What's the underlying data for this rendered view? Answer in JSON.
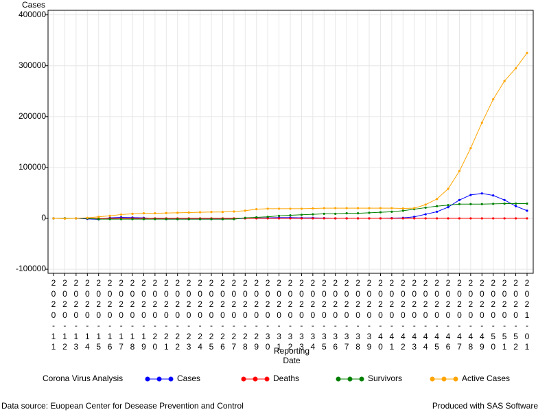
{
  "chart_data": {
    "type": "line",
    "y_label": "Cases",
    "x_label_lines": [
      "Reporting",
      "Date"
    ],
    "legend_title": "Corona Virus Analysis",
    "footnote_left": "Data source: Euopean Center for Desease Prevention and Control",
    "footnote_right": "Produced with SAS Software",
    "categories": [
      "2020-11",
      "2020-12",
      "2020-13",
      "2020-14",
      "2020-15",
      "2020-16",
      "2020-17",
      "2020-18",
      "2020-19",
      "2020-20",
      "2020-21",
      "2020-22",
      "2020-23",
      "2020-24",
      "2020-25",
      "2020-26",
      "2020-27",
      "2020-28",
      "2020-29",
      "2020-30",
      "2020-31",
      "2020-32",
      "2020-33",
      "2020-34",
      "2020-35",
      "2020-36",
      "2020-37",
      "2020-38",
      "2020-39",
      "2020-40",
      "2020-41",
      "2020-42",
      "2020-43",
      "2020-44",
      "2020-45",
      "2020-46",
      "2020-47",
      "2020-48",
      "2020-49",
      "2020-50",
      "2020-51",
      "2020-52",
      "2021-01"
    ],
    "series": [
      {
        "name": "Cases",
        "color": "#0000ff",
        "values": [
          0,
          0,
          0,
          -1000,
          -2000,
          1000,
          2000,
          1500,
          1000,
          -1000,
          -1500,
          -1500,
          -1500,
          -1500,
          -1500,
          -1500,
          -1000,
          0,
          500,
          1000,
          1500,
          1500,
          1000,
          1000,
          500,
          0,
          0,
          0,
          0,
          0,
          500,
          1000,
          3000,
          8000,
          13000,
          22000,
          36000,
          46000,
          49000,
          45000,
          36000,
          24000,
          15000
        ]
      },
      {
        "name": "Deaths",
        "color": "#ff0000",
        "values": [
          0,
          0,
          0,
          0,
          -500,
          0,
          0,
          0,
          0,
          0,
          0,
          0,
          0,
          0,
          0,
          0,
          0,
          0,
          0,
          0,
          0,
          0,
          0,
          0,
          0,
          0,
          0,
          0,
          0,
          0,
          0,
          0,
          0,
          0,
          0,
          0,
          0,
          0,
          0,
          0,
          0,
          0,
          0
        ]
      },
      {
        "name": "Survivors",
        "color": "#008000",
        "values": [
          0,
          0,
          0,
          0,
          -1500,
          -1500,
          -1500,
          -1500,
          -1500,
          -1500,
          -1500,
          -1500,
          -1500,
          -1500,
          -1500,
          -1500,
          -1500,
          1000,
          2000,
          3000,
          5000,
          6000,
          7000,
          8000,
          9000,
          9000,
          10000,
          10000,
          11000,
          12000,
          13000,
          15000,
          18000,
          21000,
          24000,
          26000,
          28000,
          28000,
          28000,
          28500,
          29000,
          29000,
          29000
        ]
      },
      {
        "name": "Active Cases",
        "color": "#ffa500",
        "values": [
          0,
          -500,
          0,
          1000,
          3000,
          5000,
          7500,
          9000,
          10000,
          10000,
          10500,
          11000,
          11500,
          12000,
          12500,
          12500,
          13500,
          15000,
          18000,
          19000,
          19000,
          19000,
          19000,
          19500,
          20000,
          20000,
          20000,
          20000,
          20000,
          20000,
          20000,
          19500,
          20000,
          27000,
          38000,
          58000,
          93000,
          138000,
          188000,
          234000,
          270000,
          295000,
          325000
        ]
      }
    ],
    "ylim": [
      -108000,
      409000
    ],
    "yticks": [
      -100000,
      0,
      100000,
      200000,
      300000,
      400000
    ],
    "grid": true
  }
}
